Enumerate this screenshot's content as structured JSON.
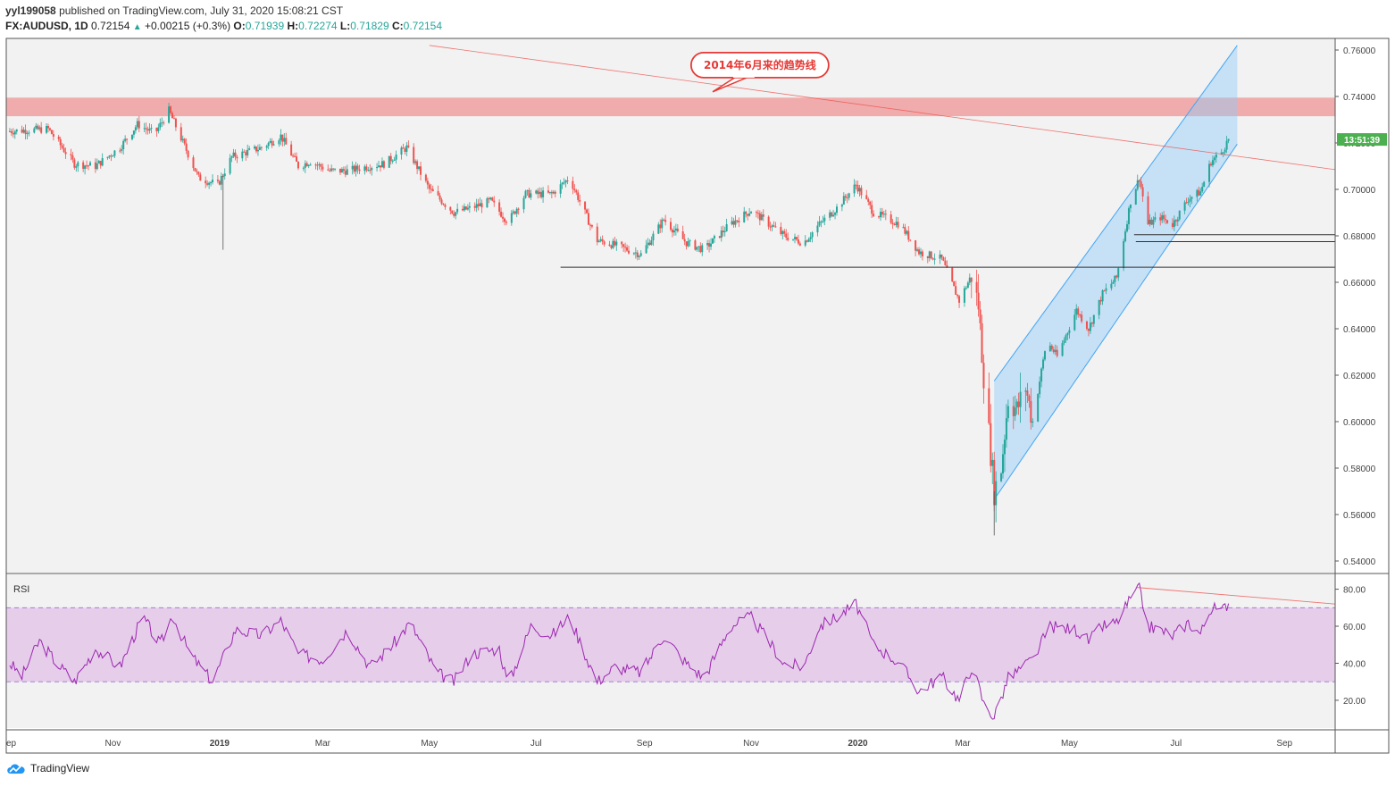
{
  "header": {
    "user": "yyl199058",
    "published_text": "published on TradingView.com, July 31, 2020 15:08:21 CST",
    "symbol": "FX:AUDUSD, 1D",
    "last": "0.72154",
    "change": "+0.00215 (+0.3%)",
    "open_label": "O:",
    "open": "0.71939",
    "high_label": "H:",
    "high": "0.72274",
    "low_label": "L:",
    "low": "0.71829",
    "close_label": "C:",
    "close": "0.72154"
  },
  "footer": {
    "brand": "TradingView"
  },
  "colors": {
    "up": "#26a69a",
    "down": "#ef5350",
    "wick": "#555555",
    "resistance_band": "#ef9a9a",
    "channel_fill": "#90caf9",
    "channel_line": "#42a5f5",
    "trendline": "#ef9a9a",
    "rsi_line": "#9c27b0",
    "rsi_band": "#e1bee7",
    "countdown_bg": "#4caf50"
  },
  "chart_data": [
    {
      "type": "candlestick",
      "ylim": [
        0.535,
        0.765
      ],
      "y_ticks": [
        "0.76000",
        "0.74000",
        "0.72000",
        "0.70000",
        "0.68000",
        "0.66000",
        "0.64000",
        "0.62000",
        "0.60000",
        "0.58000",
        "0.56000",
        "0.54000"
      ],
      "x_ticks": [
        "ep",
        "Nov",
        "2019",
        "Mar",
        "May",
        "Jul",
        "Sep",
        "Nov",
        "2020",
        "Mar",
        "May",
        "Jul",
        "Sep"
      ],
      "x_range": [
        "2018-09-01",
        "2020-09-30"
      ],
      "countdown_label": "13:51:39",
      "price_path": [
        [
          "2018-09-01",
          0.725
        ],
        [
          "2018-09-25",
          0.726
        ],
        [
          "2018-10-10",
          0.711
        ],
        [
          "2018-10-22",
          0.71
        ],
        [
          "2018-11-05",
          0.718
        ],
        [
          "2018-11-15",
          0.728
        ],
        [
          "2018-11-25",
          0.724
        ],
        [
          "2018-12-03",
          0.734
        ],
        [
          "2018-12-10",
          0.722
        ],
        [
          "2018-12-20",
          0.705
        ],
        [
          "2018-12-31",
          0.702
        ],
        [
          "2019-01-08",
          0.714
        ],
        [
          "2019-01-25",
          0.718
        ],
        [
          "2019-02-05",
          0.723
        ],
        [
          "2019-02-15",
          0.71
        ],
        [
          "2019-02-22",
          0.712
        ],
        [
          "2019-03-05",
          0.708
        ],
        [
          "2019-03-15",
          0.708
        ],
        [
          "2019-03-28",
          0.71
        ],
        [
          "2019-04-05",
          0.711
        ],
        [
          "2019-04-18",
          0.718
        ],
        [
          "2019-05-01",
          0.7
        ],
        [
          "2019-05-15",
          0.69
        ],
        [
          "2019-05-25",
          0.692
        ],
        [
          "2019-06-05",
          0.695
        ],
        [
          "2019-06-15",
          0.686
        ],
        [
          "2019-06-25",
          0.698
        ],
        [
          "2019-07-10",
          0.698
        ],
        [
          "2019-07-20",
          0.705
        ],
        [
          "2019-08-05",
          0.678
        ],
        [
          "2019-08-15",
          0.676
        ],
        [
          "2019-08-30",
          0.672
        ],
        [
          "2019-09-12",
          0.687
        ],
        [
          "2019-09-25",
          0.677
        ],
        [
          "2019-10-05",
          0.674
        ],
        [
          "2019-10-20",
          0.685
        ],
        [
          "2019-11-01",
          0.691
        ],
        [
          "2019-11-20",
          0.68
        ],
        [
          "2019-12-01",
          0.677
        ],
        [
          "2019-12-10",
          0.685
        ],
        [
          "2019-12-20",
          0.692
        ],
        [
          "2019-12-31",
          0.702
        ],
        [
          "2020-01-10",
          0.69
        ],
        [
          "2020-01-25",
          0.685
        ],
        [
          "2020-02-05",
          0.673
        ],
        [
          "2020-02-18",
          0.67
        ],
        [
          "2020-02-28",
          0.652
        ],
        [
          "2020-03-06",
          0.663
        ],
        [
          "2020-03-10",
          0.65
        ],
        [
          "2020-03-13",
          0.62
        ],
        [
          "2020-03-19",
          0.57
        ],
        [
          "2020-03-23",
          0.58
        ],
        [
          "2020-03-27",
          0.61
        ],
        [
          "2020-04-01",
          0.605
        ],
        [
          "2020-04-06",
          0.615
        ],
        [
          "2020-04-10",
          0.6
        ],
        [
          "2020-04-18",
          0.635
        ],
        [
          "2020-04-24",
          0.628
        ],
        [
          "2020-05-05",
          0.648
        ],
        [
          "2020-05-12",
          0.64
        ],
        [
          "2020-05-20",
          0.655
        ],
        [
          "2020-05-28",
          0.662
        ],
        [
          "2020-06-05",
          0.695
        ],
        [
          "2020-06-10",
          0.705
        ],
        [
          "2020-06-15",
          0.685
        ],
        [
          "2020-06-22",
          0.688
        ],
        [
          "2020-06-29",
          0.685
        ],
        [
          "2020-07-08",
          0.696
        ],
        [
          "2020-07-15",
          0.699
        ],
        [
          "2020-07-21",
          0.712
        ],
        [
          "2020-07-27",
          0.716
        ],
        [
          "2020-07-31",
          0.7215
        ]
      ],
      "wick_spikes": [
        [
          "2019-01-03",
          0.674
        ],
        [
          "2020-03-19",
          0.551
        ]
      ],
      "resistance_zone": [
        0.7315,
        0.7395
      ],
      "support_lines": [
        {
          "from": "2019-07-15",
          "to": "2020-09-30",
          "y": 0.6665
        },
        {
          "from": "2020-06-07",
          "to": "2020-09-30",
          "y": 0.6805
        },
        {
          "from": "2020-06-08",
          "to": "2020-09-30",
          "y": 0.6775
        }
      ],
      "channel": {
        "upper": [
          [
            "2020-03-19",
            0.6175
          ],
          [
            "2020-08-05",
            0.762
          ]
        ],
        "lower": [
          [
            "2020-03-19",
            0.5665
          ],
          [
            "2020-08-05",
            0.7195
          ]
        ],
        "extend_to": "2020-08-05"
      },
      "trendline": [
        [
          "2019-05-01",
          0.762
        ],
        [
          "2020-09-30",
          0.7085
        ]
      ],
      "annotation": {
        "text": "2014年6月来的趋势线",
        "at": [
          "2019-11-06",
          0.7535
        ],
        "pointer": [
          "2019-10-10",
          0.742
        ]
      }
    },
    {
      "type": "line",
      "label": "RSI",
      "ylim": [
        5,
        88
      ],
      "y_ticks": [
        "80.00",
        "60.00",
        "40.00",
        "20.00"
      ],
      "band": [
        30,
        70
      ],
      "rsi_path": [
        [
          "2018-09-01",
          42
        ],
        [
          "2018-09-10",
          33
        ],
        [
          "2018-09-20",
          52
        ],
        [
          "2018-09-30",
          40
        ],
        [
          "2018-10-10",
          30
        ],
        [
          "2018-10-22",
          48
        ],
        [
          "2018-11-05",
          38
        ],
        [
          "2018-11-18",
          65
        ],
        [
          "2018-11-28",
          50
        ],
        [
          "2018-12-05",
          66
        ],
        [
          "2018-12-15",
          45
        ],
        [
          "2018-12-28",
          30
        ],
        [
          "2019-01-10",
          58
        ],
        [
          "2019-01-25",
          55
        ],
        [
          "2019-02-05",
          63
        ],
        [
          "2019-02-15",
          45
        ],
        [
          "2019-03-01",
          42
        ],
        [
          "2019-03-15",
          58
        ],
        [
          "2019-03-28",
          38
        ],
        [
          "2019-04-10",
          50
        ],
        [
          "2019-04-20",
          62
        ],
        [
          "2019-05-05",
          35
        ],
        [
          "2019-05-15",
          30
        ],
        [
          "2019-05-25",
          45
        ],
        [
          "2019-06-10",
          48
        ],
        [
          "2019-06-15",
          28
        ],
        [
          "2019-06-28",
          60
        ],
        [
          "2019-07-10",
          55
        ],
        [
          "2019-07-20",
          65
        ],
        [
          "2019-08-05",
          30
        ],
        [
          "2019-08-15",
          38
        ],
        [
          "2019-08-30",
          35
        ],
        [
          "2019-09-12",
          55
        ],
        [
          "2019-09-25",
          40
        ],
        [
          "2019-10-05",
          32
        ],
        [
          "2019-10-20",
          60
        ],
        [
          "2019-11-01",
          65
        ],
        [
          "2019-11-20",
          40
        ],
        [
          "2019-12-01",
          38
        ],
        [
          "2019-12-10",
          60
        ],
        [
          "2019-12-20",
          65
        ],
        [
          "2019-12-31",
          72
        ],
        [
          "2020-01-10",
          50
        ],
        [
          "2020-01-25",
          40
        ],
        [
          "2020-02-05",
          25
        ],
        [
          "2020-02-18",
          33
        ],
        [
          "2020-02-28",
          20
        ],
        [
          "2020-03-06",
          38
        ],
        [
          "2020-03-10",
          28
        ],
        [
          "2020-03-13",
          18
        ],
        [
          "2020-03-19",
          11
        ],
        [
          "2020-03-27",
          32
        ],
        [
          "2020-04-10",
          42
        ],
        [
          "2020-04-20",
          60
        ],
        [
          "2020-05-05",
          58
        ],
        [
          "2020-05-12",
          52
        ],
        [
          "2020-05-20",
          60
        ],
        [
          "2020-05-28",
          62
        ],
        [
          "2020-06-05",
          75
        ],
        [
          "2020-06-10",
          80
        ],
        [
          "2020-06-15",
          60
        ],
        [
          "2020-06-22",
          58
        ],
        [
          "2020-06-29",
          55
        ],
        [
          "2020-07-08",
          62
        ],
        [
          "2020-07-15",
          56
        ],
        [
          "2020-07-21",
          70
        ],
        [
          "2020-07-27",
          68
        ],
        [
          "2020-07-31",
          73
        ]
      ],
      "divergence_line": [
        [
          "2020-06-08",
          81
        ],
        [
          "2020-09-30",
          72
        ]
      ]
    }
  ]
}
